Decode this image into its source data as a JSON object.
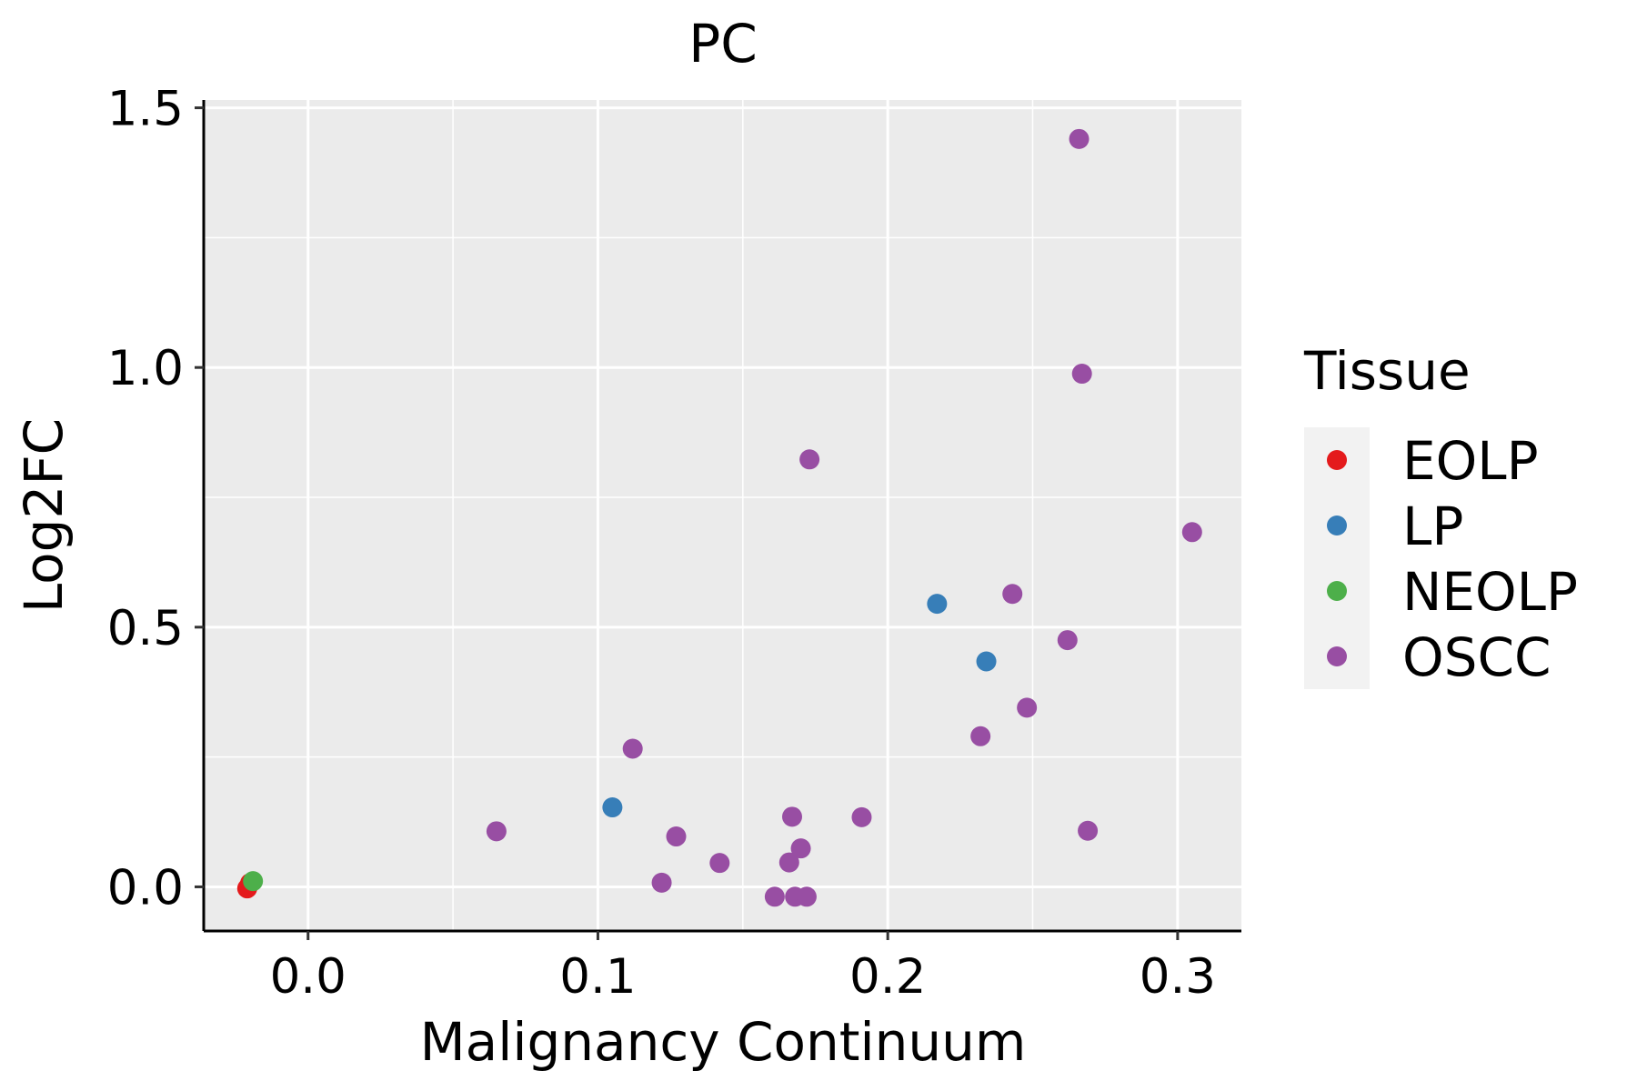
{
  "chart_data": {
    "type": "scatter",
    "title": "PC",
    "xlabel": "Malignancy Continuum",
    "ylabel": "Log2FC",
    "xlim": [
      -0.036,
      0.322
    ],
    "ylim": [
      -0.085,
      1.515
    ],
    "xticks": [
      0.0,
      0.1,
      0.2,
      0.3
    ],
    "xtick_labels": [
      "0.0",
      "0.1",
      "0.2",
      "0.3"
    ],
    "yticks": [
      0.0,
      0.5,
      1.0,
      1.5
    ],
    "ytick_labels": [
      "0.0",
      "0.5",
      "1.0",
      "1.5"
    ],
    "grid": true,
    "legend": {
      "title": "Tissue",
      "position": "right",
      "entries": [
        {
          "label": "EOLP",
          "color": "#E41A1C"
        },
        {
          "label": "LP",
          "color": "#377EB8"
        },
        {
          "label": "NEOLP",
          "color": "#4DAF4A"
        },
        {
          "label": "OSCC",
          "color": "#984EA3"
        }
      ]
    },
    "series": [
      {
        "name": "EOLP",
        "color": "#E41A1C",
        "points": [
          [
            -0.021,
            -0.003
          ],
          [
            -0.02,
            0.007
          ]
        ]
      },
      {
        "name": "LP",
        "color": "#377EB8",
        "points": [
          [
            0.105,
            0.153
          ],
          [
            0.217,
            0.545
          ],
          [
            0.234,
            0.434
          ]
        ]
      },
      {
        "name": "NEOLP",
        "color": "#4DAF4A",
        "points": [
          [
            -0.019,
            0.011
          ]
        ]
      },
      {
        "name": "OSCC",
        "color": "#984EA3",
        "points": [
          [
            0.065,
            0.107
          ],
          [
            0.112,
            0.266
          ],
          [
            0.122,
            0.008
          ],
          [
            0.127,
            0.097
          ],
          [
            0.142,
            0.046
          ],
          [
            0.161,
            -0.019
          ],
          [
            0.166,
            0.047
          ],
          [
            0.167,
            0.135
          ],
          [
            0.168,
            -0.019
          ],
          [
            0.17,
            0.074
          ],
          [
            0.172,
            -0.019
          ],
          [
            0.173,
            0.823
          ],
          [
            0.191,
            0.134
          ],
          [
            0.232,
            0.29
          ],
          [
            0.243,
            0.564
          ],
          [
            0.248,
            0.345
          ],
          [
            0.262,
            0.475
          ],
          [
            0.266,
            1.44
          ],
          [
            0.267,
            0.988
          ],
          [
            0.269,
            0.108
          ],
          [
            0.305,
            0.683
          ]
        ]
      }
    ]
  }
}
